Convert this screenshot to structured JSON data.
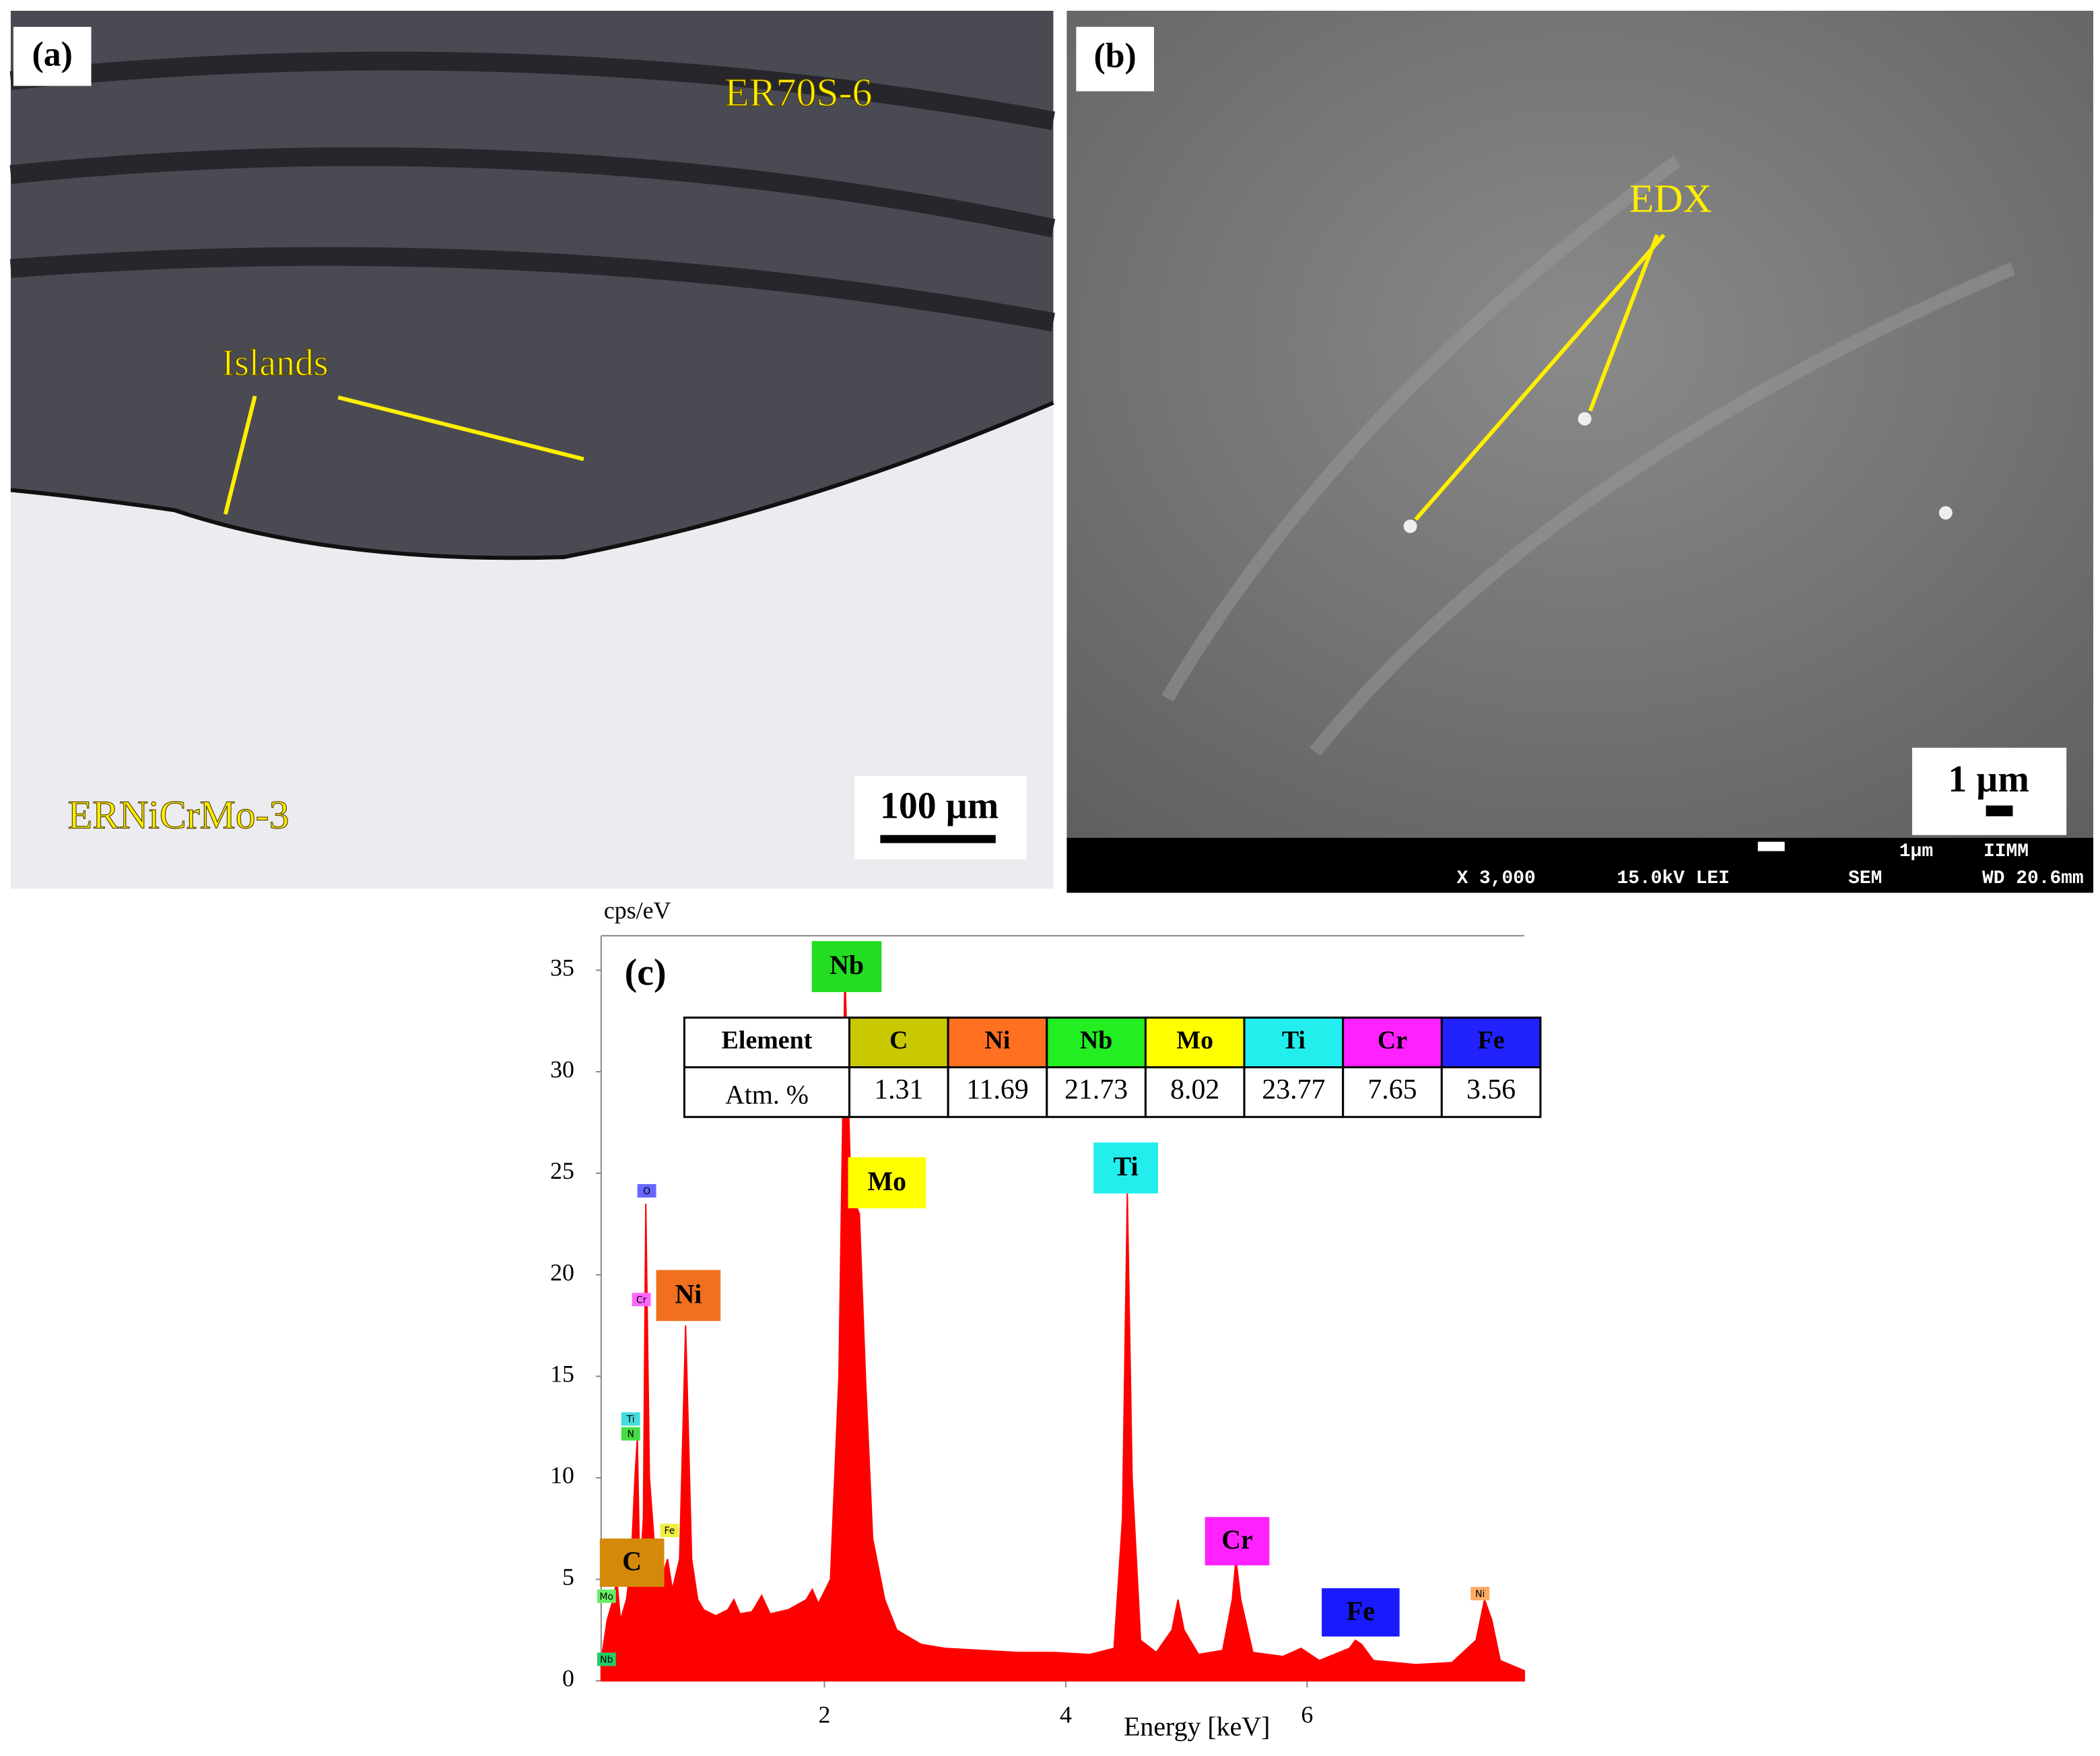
{
  "panel_a": {
    "label": "(a)",
    "top_metal": "ER70S-6",
    "islands": "Islands",
    "bottom_metal": "ERNiCrMo-3",
    "scale": "100 µm"
  },
  "panel_b": {
    "label": "(b)",
    "arrow_label": "EDX",
    "scale": "1 µm",
    "status": {
      "magnification": "X 3,000",
      "voltage": "15.0kV LEI",
      "mode": "SEM",
      "wd": "WD 20.6mm",
      "bar": "1µm",
      "lab": "IIMM"
    }
  },
  "chart_data": {
    "type": "area",
    "label": "(c)",
    "ylabel": "cps/eV",
    "xlabel": "Energy [keV]",
    "color": "#ff0000",
    "xlim": [
      0.15,
      7.8
    ],
    "ylim": [
      0,
      36.7
    ],
    "xticks": [
      2,
      4,
      6
    ],
    "yticks": [
      0,
      5,
      10,
      15,
      20,
      25,
      30,
      35
    ],
    "x": [
      0.15,
      0.2,
      0.25,
      0.28,
      0.31,
      0.36,
      0.4,
      0.43,
      0.45,
      0.47,
      0.5,
      0.52,
      0.55,
      0.6,
      0.65,
      0.7,
      0.74,
      0.8,
      0.85,
      0.9,
      0.95,
      1.0,
      1.1,
      1.2,
      1.25,
      1.3,
      1.4,
      1.48,
      1.55,
      1.7,
      1.85,
      1.9,
      1.95,
      2.05,
      2.12,
      2.17,
      2.22,
      2.29,
      2.34,
      2.4,
      2.5,
      2.6,
      2.8,
      3.0,
      3.3,
      3.6,
      3.9,
      4.2,
      4.4,
      4.47,
      4.51,
      4.55,
      4.62,
      4.75,
      4.88,
      4.93,
      4.98,
      5.1,
      5.3,
      5.38,
      5.41,
      5.45,
      5.55,
      5.8,
      5.95,
      6.1,
      6.35,
      6.4,
      6.45,
      6.55,
      6.9,
      7.2,
      7.4,
      7.47,
      7.53,
      7.6,
      7.8
    ],
    "values": [
      1,
      3,
      4,
      5,
      3,
      4,
      6,
      10,
      12,
      5,
      8,
      23.5,
      10,
      6,
      5,
      6,
      4.5,
      6,
      17.5,
      6,
      4,
      3.5,
      3.2,
      3.5,
      4,
      3.3,
      3.4,
      4.2,
      3.3,
      3.5,
      4,
      4.5,
      3.8,
      5,
      15,
      35,
      24,
      23,
      15,
      7,
      4,
      2.5,
      1.8,
      1.6,
      1.5,
      1.4,
      1.4,
      1.3,
      1.6,
      8,
      24,
      10,
      2,
      1.4,
      2.5,
      4,
      2.5,
      1.3,
      1.5,
      4,
      6,
      4,
      1.4,
      1.2,
      1.6,
      1,
      1.6,
      2,
      1.8,
      1,
      0.8,
      0.9,
      2,
      4,
      3,
      1,
      0.5
    ],
    "peak_labels": [
      {
        "text": "Nb",
        "color": "#22dd22"
      },
      {
        "text": "Mo",
        "color": "#ffff00"
      },
      {
        "text": "Ti",
        "color": "#22eeee"
      },
      {
        "text": "Ni",
        "color": "#f07020"
      },
      {
        "text": "C",
        "color": "#d4890a"
      },
      {
        "text": "Cr",
        "color": "#ff22ff"
      },
      {
        "text": "Fe",
        "color": "#1a1aff"
      }
    ],
    "small_labels": [
      {
        "text": "O",
        "color": "#6666ff"
      },
      {
        "text": "Cr",
        "color": "#ff66ff"
      },
      {
        "text": "Ti",
        "color": "#44dddd"
      },
      {
        "text": "N",
        "color": "#44dd44"
      },
      {
        "text": "Fe",
        "color": "#eeee44"
      },
      {
        "text": "Mo",
        "color": "#66ee66"
      },
      {
        "text": "Nb",
        "color": "#22cc66"
      },
      {
        "text": "Ni",
        "color": "#ffaa66"
      }
    ],
    "table": {
      "header": "Element",
      "row_label": "Atm. %",
      "elements": [
        {
          "name": "C",
          "color": "#c8c800"
        },
        {
          "name": "Ni",
          "color": "#ff7020"
        },
        {
          "name": "Nb",
          "color": "#22ee22"
        },
        {
          "name": "Mo",
          "color": "#ffff00"
        },
        {
          "name": "Ti",
          "color": "#22eeee"
        },
        {
          "name": "Cr",
          "color": "#ff22ff"
        },
        {
          "name": "Fe",
          "color": "#2222ff"
        }
      ],
      "values": [
        1.31,
        11.69,
        21.73,
        8.02,
        23.77,
        7.65,
        3.56
      ]
    }
  }
}
